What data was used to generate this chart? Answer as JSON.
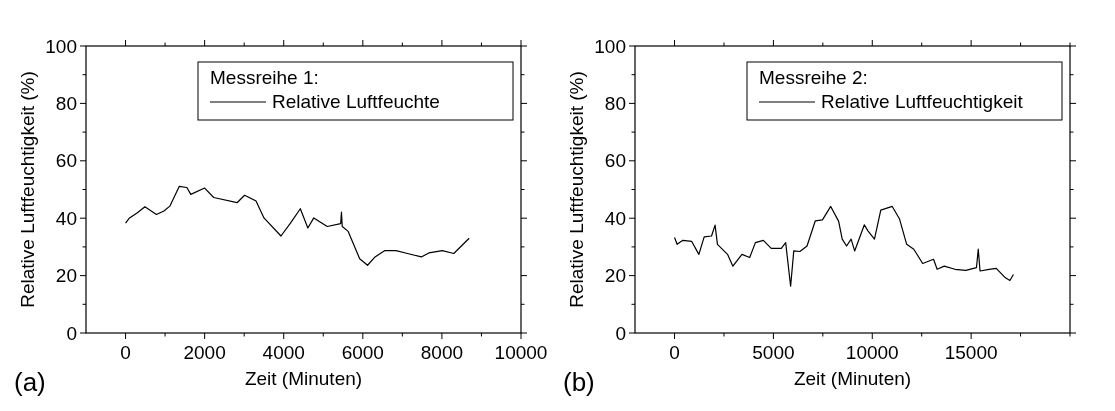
{
  "chart_data": [
    {
      "type": "line",
      "xlabel": "Zeit (Minuten)",
      "ylabel": "Relative Luftfeuchtigkeit (%)",
      "legend_title": "Messreihe 1:",
      "legend": "top right",
      "annotations": [
        "(a)"
      ],
      "xlim": [
        -1000,
        10000
      ],
      "xticks": [
        0,
        {
          "value": 1000,
          "label": null
        },
        2000,
        {
          "value": 3000,
          "label": null
        },
        4000,
        {
          "value": 5000,
          "label": null
        },
        6000,
        {
          "value": 7000,
          "label": null
        },
        8000,
        {
          "value": 9000,
          "label": null
        },
        10000
      ],
      "ylim": [
        0,
        100
      ],
      "yticks": [
        0,
        {
          "value": 10,
          "label": null
        },
        20,
        {
          "value": 30,
          "label": null
        },
        40,
        {
          "value": 50,
          "label": null
        },
        60,
        {
          "value": 70,
          "label": null
        },
        80,
        {
          "value": 90,
          "label": null
        },
        100
      ],
      "series": [
        {
          "name": "Relative Luftfeuchte",
          "color": "#000000",
          "x": [
            0,
            100,
            300,
            490,
            780,
            970,
            1120,
            1360,
            1550,
            1650,
            2000,
            2230,
            2820,
            3010,
            3300,
            3500,
            3930,
            4170,
            4420,
            4610,
            4760,
            5100,
            5440,
            5460,
            5480,
            5630,
            5920,
            6120,
            6310,
            6550,
            6840,
            7130,
            7480,
            7670,
            8010,
            8300,
            8690
          ],
          "values": [
            38.3,
            40.1,
            41.9,
            44.0,
            41.3,
            42.5,
            44.2,
            51.1,
            50.7,
            48.3,
            50.5,
            47.2,
            45.4,
            48.0,
            46.0,
            40.1,
            33.8,
            38.3,
            43.3,
            36.6,
            40.1,
            37.1,
            38.1,
            42.1,
            37.1,
            35.4,
            25.9,
            23.6,
            26.5,
            28.7,
            28.7,
            27.7,
            26.5,
            27.9,
            28.7,
            27.7,
            33.0
          ]
        }
      ]
    },
    {
      "type": "line",
      "xlabel": "Zeit (Minuten)",
      "ylabel": "Relative Luftfeuchtigkeit (%)",
      "legend_title": "Messreihe 2:",
      "legend": "top right",
      "annotations": [
        "(b)"
      ],
      "xlim": [
        -2000,
        20000
      ],
      "xticks": [
        0,
        {
          "value": 2500,
          "label": null
        },
        5000,
        {
          "value": 7500,
          "label": null
        },
        10000,
        {
          "value": 12500,
          "label": null
        },
        15000,
        {
          "value": 17500,
          "label": null
        },
        {
          "value": 20000,
          "label": null
        }
      ],
      "ylim": [
        0,
        100
      ],
      "yticks": [
        0,
        {
          "value": 10,
          "label": null
        },
        20,
        {
          "value": 30,
          "label": null
        },
        40,
        {
          "value": 50,
          "label": null
        },
        60,
        {
          "value": 70,
          "label": null
        },
        80,
        {
          "value": 90,
          "label": null
        },
        100
      ],
      "series": [
        {
          "name": "Relative Luftfeuchtigkeit",
          "color": "#000000",
          "x": [
            0,
            130,
            420,
            870,
            1230,
            1500,
            1870,
            2050,
            2170,
            2680,
            2950,
            3410,
            3800,
            4090,
            4490,
            4890,
            5400,
            5620,
            5870,
            6030,
            6340,
            6700,
            7120,
            7480,
            7900,
            8300,
            8480,
            8700,
            8930,
            9110,
            9600,
            9780,
            10110,
            10430,
            11010,
            11380,
            11740,
            12100,
            12550,
            13100,
            13280,
            13640,
            14180,
            14730,
            15270,
            15360,
            15450,
            15910,
            16270,
            16720,
            16960,
            17140
          ],
          "values": [
            33.3,
            30.9,
            32.3,
            31.9,
            27.4,
            33.5,
            33.8,
            37.6,
            30.9,
            27.4,
            23.3,
            27.4,
            26.3,
            31.5,
            32.3,
            29.5,
            29.5,
            31.5,
            16.3,
            28.6,
            28.4,
            30.3,
            39.1,
            39.4,
            44.1,
            38.9,
            32.7,
            30.3,
            32.7,
            28.6,
            37.7,
            35.6,
            32.7,
            42.8,
            44.1,
            39.7,
            30.9,
            29.2,
            24.2,
            25.7,
            22.2,
            23.3,
            22.2,
            21.8,
            22.8,
            29.2,
            21.6,
            22.2,
            22.5,
            19.3,
            18.3,
            20.4
          ]
        }
      ]
    }
  ]
}
